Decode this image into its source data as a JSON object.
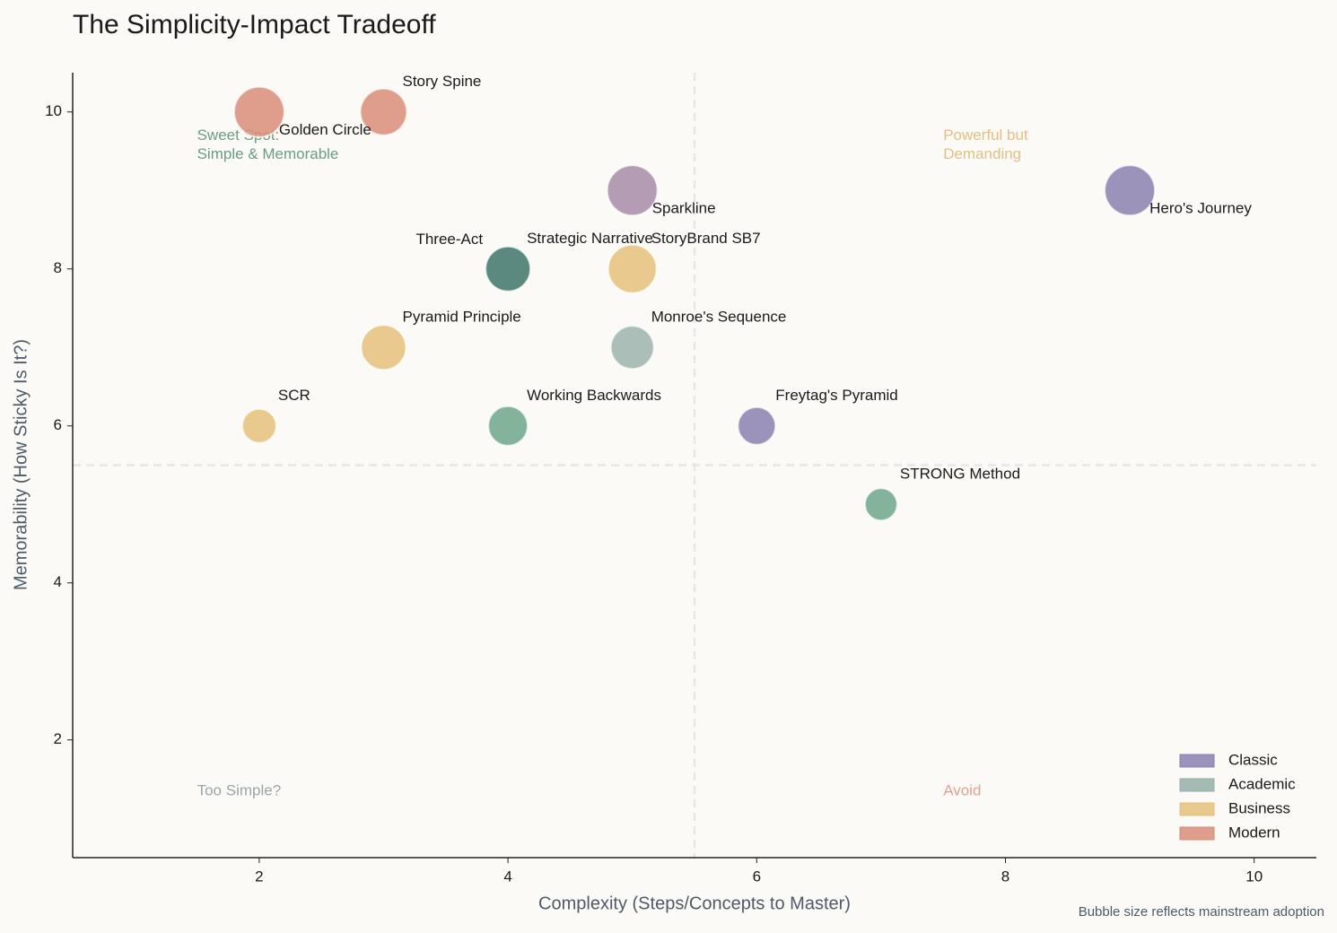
{
  "chart_data": {
    "type": "bubble",
    "title": "The Simplicity-Impact Tradeoff",
    "x_label": "Complexity (Steps/Concepts to Master)",
    "y_label": "Memorability (How Sticky Is It?)",
    "footnote": "Bubble size reflects mainstream adoption",
    "xlim": [
      0.5,
      10.5
    ],
    "ylim": [
      0.5,
      10.5
    ],
    "xticks": [
      2,
      4,
      6,
      8,
      10
    ],
    "yticks": [
      2,
      4,
      6,
      8,
      10
    ],
    "dividers": {
      "x": 5.5,
      "y": 5.5
    },
    "points": [
      {
        "label": "Hero's Journey",
        "x": 9,
        "y": 9,
        "size": 9,
        "color": "#8b80b0"
      },
      {
        "label": "Freytag's Pyramid",
        "x": 6,
        "y": 6,
        "size": 5.5,
        "color": "#8b80b0"
      },
      {
        "label": "Three-Act",
        "x": 4,
        "y": 8,
        "size": 7.5,
        "color": "#3f6e66"
      },
      {
        "label": "Strategic Narrative",
        "x": 4,
        "y": 8,
        "size": 7.5,
        "color": "#5b8a80"
      },
      {
        "label": "Sparkline",
        "x": 5,
        "y": 9,
        "size": 9,
        "color": "#a68ba8"
      },
      {
        "label": "StoryBrand SB7",
        "x": 5,
        "y": 8,
        "size": 8.5,
        "color": "#e5c07b"
      },
      {
        "label": "Monroe's Sequence",
        "x": 5,
        "y": 7,
        "size": 7,
        "color": "#9db3ad"
      },
      {
        "label": "Pyramid Principle",
        "x": 3,
        "y": 7,
        "size": 7.5,
        "color": "#e5c07b"
      },
      {
        "label": "SCR",
        "x": 2,
        "y": 6,
        "size": 4.5,
        "color": "#e5c07b"
      },
      {
        "label": "Working Backwards",
        "x": 4,
        "y": 6,
        "size": 6,
        "color": "#6fa68b"
      },
      {
        "label": "STRONG Method",
        "x": 7,
        "y": 5,
        "size": 4,
        "color": "#6fa68b"
      },
      {
        "label": "Story Spine",
        "x": 3,
        "y": 10,
        "size": 8,
        "color": "#d98c78"
      },
      {
        "label": "Golden Circle",
        "x": 2,
        "y": 10,
        "size": 9,
        "color": "#d98c78"
      }
    ],
    "annotations": [
      {
        "lines": [
          "Sweet Spot:",
          "Simple & Memorable"
        ],
        "color": "#6a9e82"
      },
      {
        "lines": [
          "Powerful but",
          "Demanding"
        ],
        "color": "#e3bf85"
      },
      {
        "lines": [
          "Too Simple?"
        ],
        "color": "#9aa5a8"
      },
      {
        "lines": [
          "Avoid"
        ],
        "color": "#dca393"
      }
    ],
    "legend": [
      {
        "name": "Classic",
        "color": "#8b80b0"
      },
      {
        "name": "Academic",
        "color": "#94aea8"
      },
      {
        "name": "Business",
        "color": "#e5c07b"
      },
      {
        "name": "Modern",
        "color": "#d98c78"
      }
    ],
    "legend_position": "lower right"
  }
}
